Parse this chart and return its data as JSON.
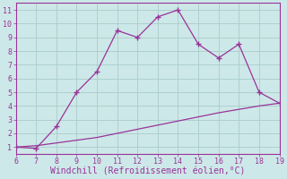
{
  "xlabel": "Windchill (Refroidissement éolien,°C)",
  "bg_color": "#cde8e8",
  "grid_color": "#aacccc",
  "line_color": "#993399",
  "xlim": [
    6,
    19
  ],
  "ylim": [
    0.5,
    11.5
  ],
  "xticks": [
    6,
    7,
    8,
    9,
    10,
    11,
    12,
    13,
    14,
    15,
    16,
    17,
    18,
    19
  ],
  "yticks": [
    1,
    2,
    3,
    4,
    5,
    6,
    7,
    8,
    9,
    10,
    11
  ],
  "upper_x": [
    6,
    7,
    8,
    9,
    10,
    11,
    12,
    13,
    14,
    15,
    16,
    17,
    18,
    19
  ],
  "upper_y": [
    1.0,
    0.9,
    2.5,
    5.0,
    6.5,
    9.5,
    9.0,
    10.5,
    11.0,
    8.5,
    7.5,
    8.5,
    5.0,
    4.2
  ],
  "lower_x": [
    6,
    7,
    8,
    9,
    10,
    11,
    12,
    13,
    14,
    15,
    16,
    17,
    18,
    19
  ],
  "lower_y": [
    1.0,
    1.1,
    1.3,
    1.5,
    1.7,
    2.0,
    2.3,
    2.6,
    2.9,
    3.2,
    3.5,
    3.75,
    4.0,
    4.2
  ],
  "font_family": "monospace",
  "label_fontsize": 7,
  "tick_fontsize": 6
}
